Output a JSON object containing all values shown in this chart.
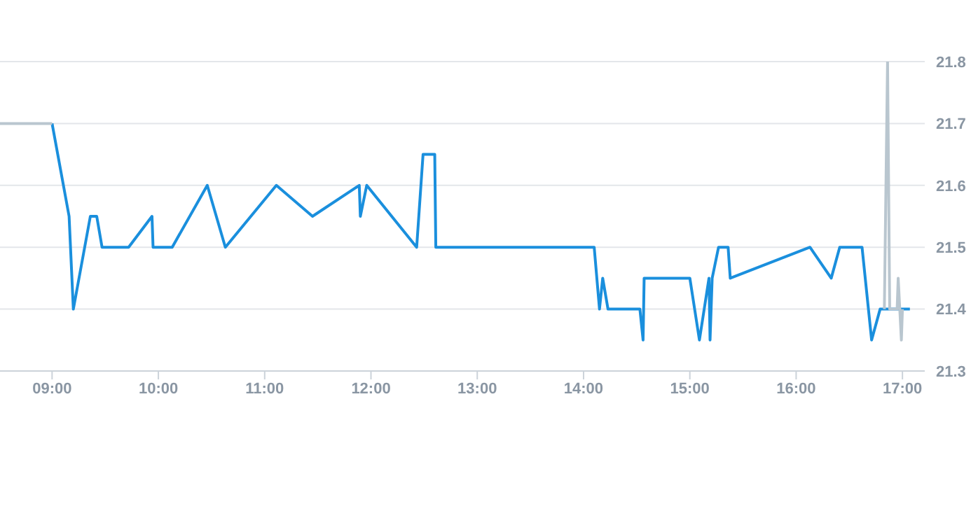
{
  "chart_data": {
    "type": "line",
    "xlim": [
      8.51,
      17.21
    ],
    "xticks": [
      {
        "value": 9,
        "label": "09:00"
      },
      {
        "value": 10,
        "label": "10:00"
      },
      {
        "value": 11,
        "label": "11:00"
      },
      {
        "value": 12,
        "label": "12:00"
      },
      {
        "value": 13,
        "label": "13:00"
      },
      {
        "value": 14,
        "label": "14:00"
      },
      {
        "value": 15,
        "label": "15:00"
      },
      {
        "value": 16,
        "label": "16:00"
      },
      {
        "value": 17,
        "label": "17:00"
      }
    ],
    "ylim": [
      21.3,
      21.8
    ],
    "yticks": [
      21.3,
      21.4,
      21.5,
      21.6,
      21.7,
      21.8
    ],
    "grid": "y",
    "marker": "none",
    "line_style": "solid",
    "series": [
      {
        "color": "#1a8fdd",
        "x": [
          9.0,
          9.16,
          9.2,
          9.36,
          9.42,
          9.47,
          9.72,
          9.94,
          9.95,
          10.13,
          10.46,
          10.63,
          11.11,
          11.45,
          11.89,
          11.9,
          11.96,
          12.43,
          12.49,
          12.6,
          12.61,
          14.1,
          14.15,
          14.18,
          14.23,
          14.53,
          14.56,
          14.57,
          15.0,
          15.09,
          15.18,
          15.19,
          15.21,
          15.27,
          15.36,
          15.38,
          16.13,
          16.33,
          16.41,
          16.62,
          16.71,
          16.79,
          17.07
        ],
        "values": [
          21.7,
          21.55,
          21.4,
          21.55,
          21.55,
          21.5,
          21.5,
          21.55,
          21.5,
          21.5,
          21.6,
          21.5,
          21.6,
          21.55,
          21.6,
          21.55,
          21.6,
          21.5,
          21.65,
          21.65,
          21.5,
          21.5,
          21.4,
          21.45,
          21.4,
          21.4,
          21.35,
          21.45,
          21.45,
          21.35,
          21.45,
          21.35,
          21.45,
          21.5,
          21.5,
          21.45,
          21.5,
          21.45,
          21.5,
          21.5,
          21.35,
          21.4,
          21.4
        ]
      },
      {
        "color": "#b9c6cf",
        "x": [
          8.51,
          9.0,
          12.0,
          16.83,
          16.86,
          16.88,
          16.95,
          16.96,
          16.99,
          17.0
        ],
        "values": [
          21.7,
          21.7,
          null,
          21.4,
          21.8,
          21.4,
          21.4,
          21.45,
          21.35,
          21.4
        ]
      }
    ]
  }
}
